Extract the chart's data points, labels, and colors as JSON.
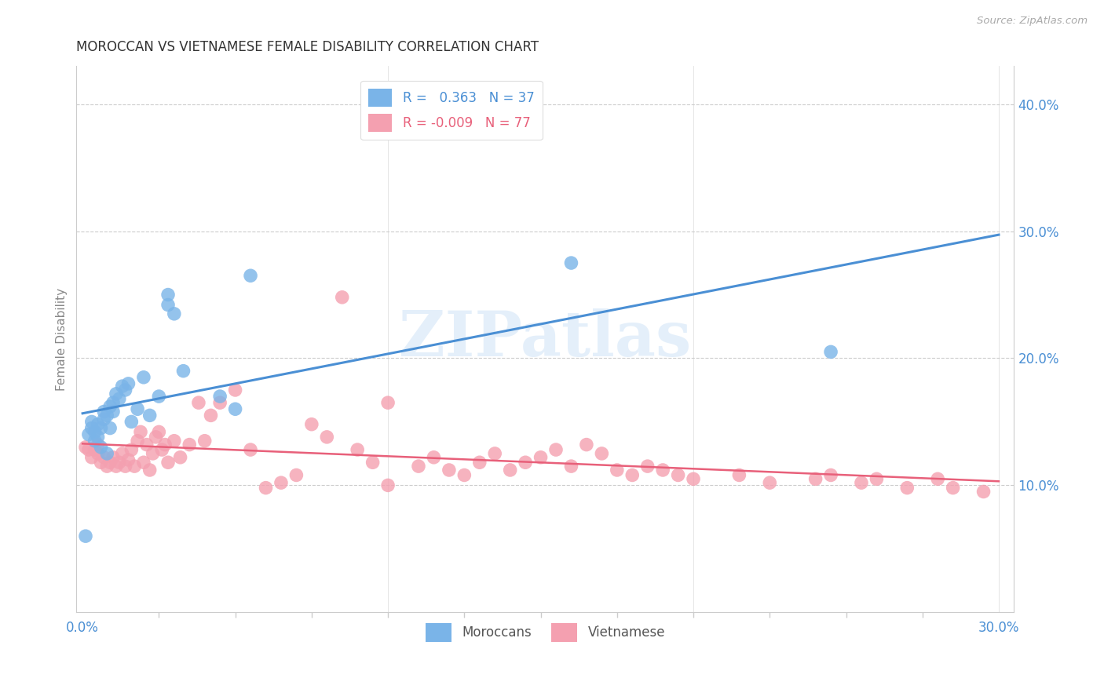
{
  "title": "MOROCCAN VS VIETNAMESE FEMALE DISABILITY CORRELATION CHART",
  "source": "Source: ZipAtlas.com",
  "ylabel": "Female Disability",
  "xlabel_moroccan": "Moroccans",
  "xlabel_vietnamese": "Vietnamese",
  "xlim": [
    -0.002,
    0.305
  ],
  "ylim": [
    0.0,
    0.43
  ],
  "moroccan_R": 0.363,
  "moroccan_N": 37,
  "vietnamese_R": -0.009,
  "vietnamese_N": 77,
  "moroccan_color": "#7ab4e8",
  "vietnamese_color": "#f4a0b0",
  "moroccan_line_color": "#4a8fd4",
  "vietnamese_line_color": "#e8607a",
  "watermark": "ZIPatlas",
  "bg_color": "#ffffff",
  "grid_color": "#cccccc",
  "title_color": "#333333",
  "axis_label_color": "#4a8fd4",
  "ylabel_color": "#888888",
  "source_color": "#aaaaaa",
  "moroccan_x": [
    0.002,
    0.003,
    0.003,
    0.004,
    0.004,
    0.005,
    0.005,
    0.006,
    0.006,
    0.007,
    0.007,
    0.008,
    0.008,
    0.009,
    0.009,
    0.01,
    0.01,
    0.011,
    0.012,
    0.013,
    0.014,
    0.015,
    0.016,
    0.018,
    0.02,
    0.022,
    0.025,
    0.028,
    0.028,
    0.03,
    0.033,
    0.045,
    0.05,
    0.055,
    0.16,
    0.245,
    0.001
  ],
  "moroccan_y": [
    0.14,
    0.15,
    0.145,
    0.135,
    0.142,
    0.138,
    0.148,
    0.13,
    0.145,
    0.152,
    0.158,
    0.125,
    0.155,
    0.162,
    0.145,
    0.158,
    0.165,
    0.172,
    0.168,
    0.178,
    0.175,
    0.18,
    0.15,
    0.16,
    0.185,
    0.155,
    0.17,
    0.25,
    0.242,
    0.235,
    0.19,
    0.17,
    0.16,
    0.265,
    0.275,
    0.205,
    0.06
  ],
  "vietnamese_x": [
    0.001,
    0.002,
    0.003,
    0.004,
    0.005,
    0.005,
    0.006,
    0.007,
    0.008,
    0.009,
    0.01,
    0.011,
    0.012,
    0.013,
    0.014,
    0.015,
    0.016,
    0.017,
    0.018,
    0.019,
    0.02,
    0.021,
    0.022,
    0.023,
    0.024,
    0.025,
    0.026,
    0.027,
    0.028,
    0.03,
    0.032,
    0.035,
    0.038,
    0.04,
    0.042,
    0.045,
    0.05,
    0.055,
    0.06,
    0.065,
    0.07,
    0.075,
    0.08,
    0.085,
    0.09,
    0.095,
    0.1,
    0.11,
    0.115,
    0.12,
    0.125,
    0.13,
    0.135,
    0.14,
    0.145,
    0.15,
    0.155,
    0.16,
    0.165,
    0.17,
    0.175,
    0.18,
    0.185,
    0.19,
    0.195,
    0.2,
    0.215,
    0.225,
    0.24,
    0.245,
    0.255,
    0.26,
    0.27,
    0.28,
    0.285,
    0.295,
    0.1
  ],
  "vietnamese_y": [
    0.13,
    0.128,
    0.122,
    0.128,
    0.132,
    0.125,
    0.118,
    0.122,
    0.115,
    0.118,
    0.122,
    0.115,
    0.118,
    0.125,
    0.115,
    0.12,
    0.128,
    0.115,
    0.135,
    0.142,
    0.118,
    0.132,
    0.112,
    0.125,
    0.138,
    0.142,
    0.128,
    0.132,
    0.118,
    0.135,
    0.122,
    0.132,
    0.165,
    0.135,
    0.155,
    0.165,
    0.175,
    0.128,
    0.098,
    0.102,
    0.108,
    0.148,
    0.138,
    0.248,
    0.128,
    0.118,
    0.1,
    0.115,
    0.122,
    0.112,
    0.108,
    0.118,
    0.125,
    0.112,
    0.118,
    0.122,
    0.128,
    0.115,
    0.132,
    0.125,
    0.112,
    0.108,
    0.115,
    0.112,
    0.108,
    0.105,
    0.108,
    0.102,
    0.105,
    0.108,
    0.102,
    0.105,
    0.098,
    0.105,
    0.098,
    0.095,
    0.165
  ]
}
